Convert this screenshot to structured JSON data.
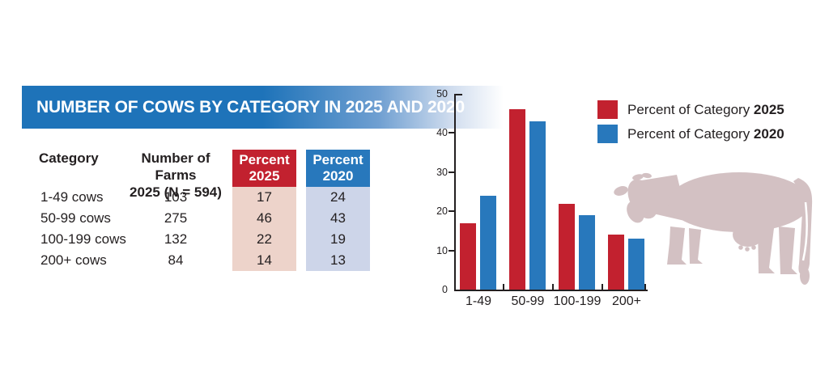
{
  "title": "NUMBER OF COWS BY CATEGORY IN 2025 AND 2020",
  "colors": {
    "band_blue": "#1e73b9",
    "red_2025": "#c2212f",
    "blue_2020": "#2878bc",
    "light_red": "#edd3ca",
    "light_blue": "#cdd5e9",
    "axis": "#231f20",
    "cow": "#d3c1c3"
  },
  "table": {
    "headers": {
      "category": "Category",
      "farms_line1": "Number of Farms",
      "farms_line2": "2025 (N = 594)",
      "pct2025_line1": "Percent",
      "pct2025_line2": "2025",
      "pct2020_line1": "Percent",
      "pct2020_line2": "2020"
    },
    "rows": [
      {
        "category": "1-49 cows",
        "farms": "103",
        "pct2025": "17",
        "pct2020": "24"
      },
      {
        "category": "50-99 cows",
        "farms": "275",
        "pct2025": "46",
        "pct2020": "43"
      },
      {
        "category": "100-199 cows",
        "farms": "132",
        "pct2025": "22",
        "pct2020": "19"
      },
      {
        "category": "200+ cows",
        "farms": "84",
        "pct2025": "14",
        "pct2020": "13"
      }
    ]
  },
  "legend": {
    "items": [
      {
        "prefix": "Percent of Category ",
        "year": "2025",
        "color": "#c2212f"
      },
      {
        "prefix": "Percent of Category ",
        "year": "2020",
        "color": "#2878bc"
      }
    ]
  },
  "chart_data": {
    "type": "bar",
    "title": "",
    "xlabel": "",
    "ylabel": "",
    "categories": [
      "1-49",
      "50-99",
      "100-199",
      "200+"
    ],
    "series": [
      {
        "name": "Percent of Category 2025",
        "color": "#c2212f",
        "values": [
          17,
          46,
          22,
          14
        ]
      },
      {
        "name": "Percent of Category 2020",
        "color": "#2878bc",
        "values": [
          24,
          43,
          19,
          13
        ]
      }
    ],
    "ylim": [
      0,
      50
    ],
    "yticks": [
      0,
      10,
      20,
      30,
      40,
      50
    ],
    "grid": false,
    "legend_position": "top-right"
  }
}
